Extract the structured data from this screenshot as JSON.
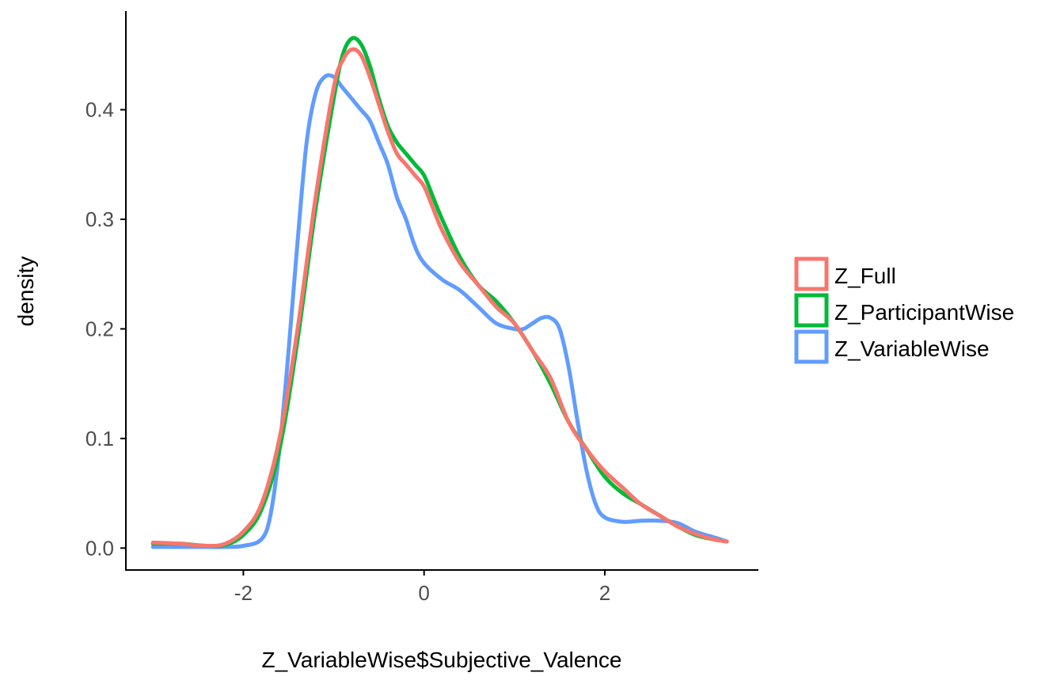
{
  "chart_data": {
    "type": "line",
    "title": "",
    "xlabel": "Z_VariableWise$Subjective_Valence",
    "ylabel": "density",
    "xlim": [
      -3.3,
      3.7
    ],
    "ylim": [
      -0.02,
      0.49
    ],
    "x_ticks": [
      {
        "value": -2,
        "label": "-2"
      },
      {
        "value": 0,
        "label": "0"
      },
      {
        "value": 2,
        "label": "2"
      }
    ],
    "y_ticks": [
      {
        "value": 0.0,
        "label": "0.0"
      },
      {
        "value": 0.1,
        "label": "0.1"
      },
      {
        "value": 0.2,
        "label": "0.2"
      },
      {
        "value": 0.3,
        "label": "0.3"
      },
      {
        "value": 0.4,
        "label": "0.4"
      }
    ],
    "grid": false,
    "legend_position": "right",
    "series": [
      {
        "name": "Z_Full",
        "color": "#F8766D",
        "points": [
          [
            -3.0,
            0.005
          ],
          [
            -2.7,
            0.004
          ],
          [
            -2.4,
            0.002
          ],
          [
            -2.2,
            0.004
          ],
          [
            -2.0,
            0.015
          ],
          [
            -1.8,
            0.04
          ],
          [
            -1.6,
            0.1
          ],
          [
            -1.4,
            0.2
          ],
          [
            -1.2,
            0.32
          ],
          [
            -1.0,
            0.42
          ],
          [
            -0.9,
            0.445
          ],
          [
            -0.8,
            0.455
          ],
          [
            -0.7,
            0.45
          ],
          [
            -0.6,
            0.43
          ],
          [
            -0.5,
            0.405
          ],
          [
            -0.4,
            0.38
          ],
          [
            -0.3,
            0.36
          ],
          [
            -0.2,
            0.35
          ],
          [
            -0.1,
            0.34
          ],
          [
            0.0,
            0.33
          ],
          [
            0.1,
            0.31
          ],
          [
            0.2,
            0.29
          ],
          [
            0.4,
            0.26
          ],
          [
            0.6,
            0.24
          ],
          [
            0.8,
            0.22
          ],
          [
            1.0,
            0.205
          ],
          [
            1.2,
            0.18
          ],
          [
            1.4,
            0.155
          ],
          [
            1.6,
            0.115
          ],
          [
            1.8,
            0.09
          ],
          [
            2.0,
            0.07
          ],
          [
            2.2,
            0.055
          ],
          [
            2.4,
            0.04
          ],
          [
            2.6,
            0.03
          ],
          [
            2.8,
            0.02
          ],
          [
            3.0,
            0.013
          ],
          [
            3.2,
            0.008
          ],
          [
            3.35,
            0.006
          ]
        ]
      },
      {
        "name": "Z_ParticipantWise",
        "color": "#00BA38",
        "points": [
          [
            -3.0,
            0.004
          ],
          [
            -2.7,
            0.004
          ],
          [
            -2.4,
            0.002
          ],
          [
            -2.2,
            0.003
          ],
          [
            -2.0,
            0.012
          ],
          [
            -1.8,
            0.035
          ],
          [
            -1.6,
            0.09
          ],
          [
            -1.4,
            0.19
          ],
          [
            -1.2,
            0.31
          ],
          [
            -1.0,
            0.41
          ],
          [
            -0.9,
            0.45
          ],
          [
            -0.8,
            0.465
          ],
          [
            -0.7,
            0.46
          ],
          [
            -0.6,
            0.44
          ],
          [
            -0.5,
            0.41
          ],
          [
            -0.4,
            0.385
          ],
          [
            -0.3,
            0.37
          ],
          [
            -0.2,
            0.36
          ],
          [
            -0.1,
            0.35
          ],
          [
            0.0,
            0.34
          ],
          [
            0.1,
            0.32
          ],
          [
            0.2,
            0.3
          ],
          [
            0.4,
            0.265
          ],
          [
            0.6,
            0.24
          ],
          [
            0.8,
            0.225
          ],
          [
            1.0,
            0.205
          ],
          [
            1.2,
            0.18
          ],
          [
            1.4,
            0.15
          ],
          [
            1.6,
            0.115
          ],
          [
            1.8,
            0.09
          ],
          [
            2.0,
            0.065
          ],
          [
            2.2,
            0.05
          ],
          [
            2.4,
            0.04
          ],
          [
            2.6,
            0.03
          ],
          [
            2.8,
            0.02
          ],
          [
            3.0,
            0.012
          ],
          [
            3.2,
            0.008
          ],
          [
            3.35,
            0.006
          ]
        ]
      },
      {
        "name": "Z_VariableWise",
        "color": "#619CFF",
        "points": [
          [
            -3.0,
            0.001
          ],
          [
            -2.7,
            0.001
          ],
          [
            -2.4,
            0.001
          ],
          [
            -2.2,
            0.001
          ],
          [
            -2.0,
            0.002
          ],
          [
            -1.8,
            0.008
          ],
          [
            -1.7,
            0.03
          ],
          [
            -1.6,
            0.09
          ],
          [
            -1.5,
            0.18
          ],
          [
            -1.4,
            0.28
          ],
          [
            -1.3,
            0.37
          ],
          [
            -1.2,
            0.415
          ],
          [
            -1.1,
            0.43
          ],
          [
            -1.0,
            0.43
          ],
          [
            -0.9,
            0.42
          ],
          [
            -0.8,
            0.41
          ],
          [
            -0.7,
            0.4
          ],
          [
            -0.6,
            0.39
          ],
          [
            -0.5,
            0.37
          ],
          [
            -0.4,
            0.35
          ],
          [
            -0.3,
            0.32
          ],
          [
            -0.2,
            0.3
          ],
          [
            -0.1,
            0.275
          ],
          [
            0.0,
            0.26
          ],
          [
            0.2,
            0.245
          ],
          [
            0.4,
            0.235
          ],
          [
            0.6,
            0.22
          ],
          [
            0.8,
            0.205
          ],
          [
            1.0,
            0.2
          ],
          [
            1.1,
            0.2
          ],
          [
            1.2,
            0.205
          ],
          [
            1.3,
            0.21
          ],
          [
            1.4,
            0.21
          ],
          [
            1.5,
            0.2
          ],
          [
            1.6,
            0.165
          ],
          [
            1.7,
            0.115
          ],
          [
            1.8,
            0.07
          ],
          [
            1.9,
            0.04
          ],
          [
            2.0,
            0.028
          ],
          [
            2.2,
            0.024
          ],
          [
            2.4,
            0.025
          ],
          [
            2.6,
            0.025
          ],
          [
            2.8,
            0.023
          ],
          [
            3.0,
            0.015
          ],
          [
            3.2,
            0.01
          ],
          [
            3.35,
            0.006
          ]
        ]
      }
    ]
  }
}
